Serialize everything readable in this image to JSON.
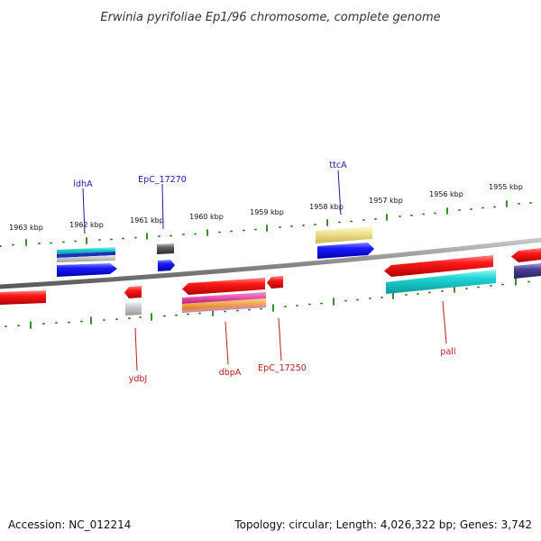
{
  "title": "Erwinia pyrifoliae Ep1/96 chromosome, complete genome",
  "ruler": {
    "ticks": [
      "1963 kbp",
      "1962 kbp",
      "1961 kbp",
      "1960 kbp",
      "1959 kbp",
      "1958 kbp",
      "1957 kbp",
      "1956 kbp",
      "1955 kbp"
    ],
    "tick_color": "#2a7a1e"
  },
  "genes_top": [
    "ldhA",
    "EpC_17270",
    "ttcA"
  ],
  "genes_bottom": [
    "ydbJ",
    "dbpA",
    "EpC_17250",
    "pall"
  ],
  "colors": {
    "backbone": "#8c8c8c",
    "top_label": "#1a1aaa",
    "bottom_label": "#b81c1c",
    "red": "#e81818",
    "blue": "#1414e6",
    "cyan": "#1ad0d0",
    "khaki": "#f0e28c",
    "purple": "#4a3e8c",
    "gray": "#5a5a5a"
  },
  "footer": {
    "accession": "Accession: NC_012214",
    "topology": "Topology: circular; Length: 4,026,322 bp; Genes: 3,742"
  }
}
